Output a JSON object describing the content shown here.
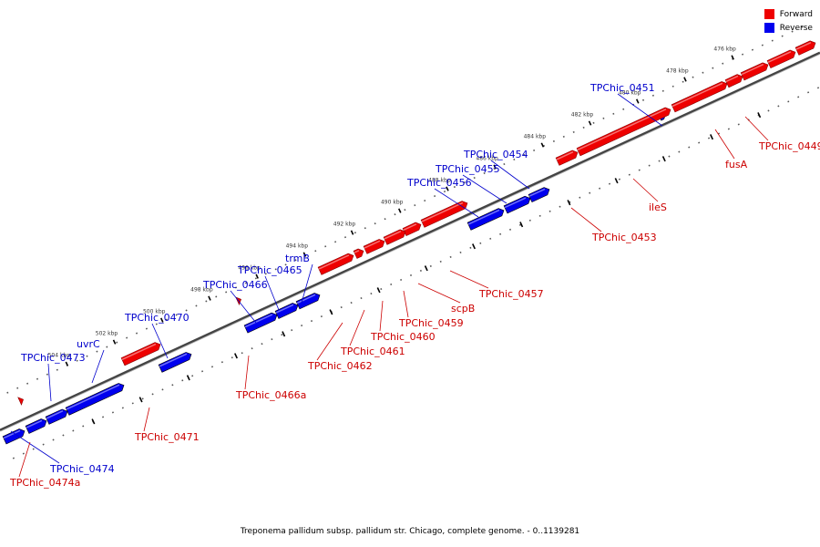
{
  "legend": {
    "forward_label": "Forward",
    "reverse_label": "Reverse",
    "forward_color": "#ee0000",
    "reverse_color": "#0000ee"
  },
  "caption": "Treponema pallidum subsp. pallidum str. Chicago, complete genome. - 0..1139281",
  "ticks": [
    {
      "label": "476 kbp",
      "kbp": 476
    },
    {
      "label": "478 kbp",
      "kbp": 478
    },
    {
      "label": "480 kbp",
      "kbp": 480
    },
    {
      "label": "482 kbp",
      "kbp": 482
    },
    {
      "label": "484 kbp",
      "kbp": 484
    },
    {
      "label": "486 kbp",
      "kbp": 486
    },
    {
      "label": "488 kbp",
      "kbp": 488
    },
    {
      "label": "490 kbp",
      "kbp": 490
    },
    {
      "label": "492 kbp",
      "kbp": 492
    },
    {
      "label": "494 kbp",
      "kbp": 494
    },
    {
      "label": "496 kbp",
      "kbp": 496
    },
    {
      "label": "498 kbp",
      "kbp": 498
    },
    {
      "label": "500 kbp",
      "kbp": 500
    },
    {
      "label": "502 kbp",
      "kbp": 502
    },
    {
      "label": "504 kbp",
      "kbp": 504
    }
  ],
  "genes": [
    {
      "name": "TPChic_0449",
      "strand": "forward"
    },
    {
      "name": "fusA",
      "strand": "forward"
    },
    {
      "name": "TPChic_0451",
      "strand": "reverse"
    },
    {
      "name": "ileS",
      "strand": "forward"
    },
    {
      "name": "TPChic_0453",
      "strand": "forward"
    },
    {
      "name": "TPChic_0454",
      "strand": "reverse"
    },
    {
      "name": "TPChic_0455",
      "strand": "reverse"
    },
    {
      "name": "TPChic_0456",
      "strand": "reverse"
    },
    {
      "name": "TPChic_0457",
      "strand": "forward"
    },
    {
      "name": "scpB",
      "strand": "forward"
    },
    {
      "name": "TPChic_0459",
      "strand": "forward"
    },
    {
      "name": "TPChic_0460",
      "strand": "forward"
    },
    {
      "name": "TPChic_0461",
      "strand": "forward"
    },
    {
      "name": "TPChic_0462",
      "strand": "forward"
    },
    {
      "name": "trmB",
      "strand": "reverse"
    },
    {
      "name": "TPChic_0465",
      "strand": "reverse"
    },
    {
      "name": "TPChic_0466",
      "strand": "reverse"
    },
    {
      "name": "TPChic_0466a",
      "strand": "forward"
    },
    {
      "name": "TPChic_0470",
      "strand": "reverse"
    },
    {
      "name": "TPChic_0471",
      "strand": "forward"
    },
    {
      "name": "uvrC",
      "strand": "reverse"
    },
    {
      "name": "TPChic_0473",
      "strand": "reverse"
    },
    {
      "name": "TPChic_0474",
      "strand": "reverse"
    },
    {
      "name": "TPChic_0474a",
      "strand": "forward"
    }
  ]
}
